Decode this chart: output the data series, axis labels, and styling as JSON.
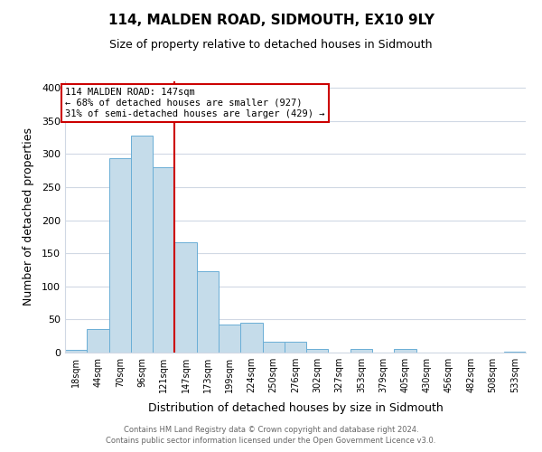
{
  "title": "114, MALDEN ROAD, SIDMOUTH, EX10 9LY",
  "subtitle": "Size of property relative to detached houses in Sidmouth",
  "xlabel": "Distribution of detached houses by size in Sidmouth",
  "ylabel": "Number of detached properties",
  "bin_labels": [
    "18sqm",
    "44sqm",
    "70sqm",
    "96sqm",
    "121sqm",
    "147sqm",
    "173sqm",
    "199sqm",
    "224sqm",
    "250sqm",
    "276sqm",
    "302sqm",
    "327sqm",
    "353sqm",
    "379sqm",
    "405sqm",
    "430sqm",
    "456sqm",
    "482sqm",
    "508sqm",
    "533sqm"
  ],
  "bar_heights": [
    4,
    36,
    294,
    328,
    280,
    167,
    123,
    42,
    45,
    16,
    17,
    5,
    0,
    6,
    0,
    6,
    0,
    0,
    0,
    0,
    2
  ],
  "bar_color": "#c5dcea",
  "bar_edge_color": "#6aaed6",
  "vline_color": "#cc0000",
  "annotation_text": "114 MALDEN ROAD: 147sqm\n← 68% of detached houses are smaller (927)\n31% of semi-detached houses are larger (429) →",
  "annotation_box_edgecolor": "#cc0000",
  "ylim": [
    0,
    410
  ],
  "yticks": [
    0,
    50,
    100,
    150,
    200,
    250,
    300,
    350,
    400
  ],
  "footer_line1": "Contains HM Land Registry data © Crown copyright and database right 2024.",
  "footer_line2": "Contains public sector information licensed under the Open Government Licence v3.0.",
  "background_color": "#ffffff",
  "grid_color": "#d0d8e4"
}
